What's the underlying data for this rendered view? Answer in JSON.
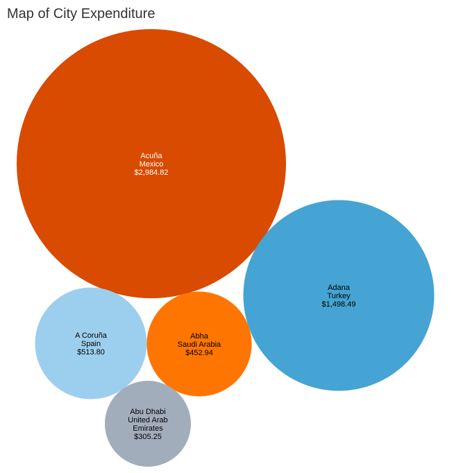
{
  "title": "Map of City Expenditure",
  "chart_data": {
    "type": "bubble",
    "title": "Map of City Expenditure",
    "series": [
      {
        "city": "Acuña",
        "country": "Mexico",
        "value_label": "$2,984.82",
        "value": 2984.82,
        "color": "#d84b01",
        "text_color": "#ffffff"
      },
      {
        "city": "Adana",
        "country": "Turkey",
        "value_label": "$1,498.49",
        "value": 1498.49,
        "color": "#45a4d3",
        "text_color": "#000000"
      },
      {
        "city": "A Coruña",
        "country": "Spain",
        "value_label": "$513.80",
        "value": 513.8,
        "color": "#9ccfee",
        "text_color": "#000000"
      },
      {
        "city": "Abha",
        "country": "Saudi Arabia",
        "value_label": "$452.94",
        "value": 452.94,
        "color": "#ff7502",
        "text_color": "#000000"
      },
      {
        "city": "Abu Dhabi",
        "country": "United Arab Emirates",
        "value_label": "$305.25",
        "value": 305.25,
        "color": "#a2adbc",
        "text_color": "#000000"
      }
    ]
  }
}
